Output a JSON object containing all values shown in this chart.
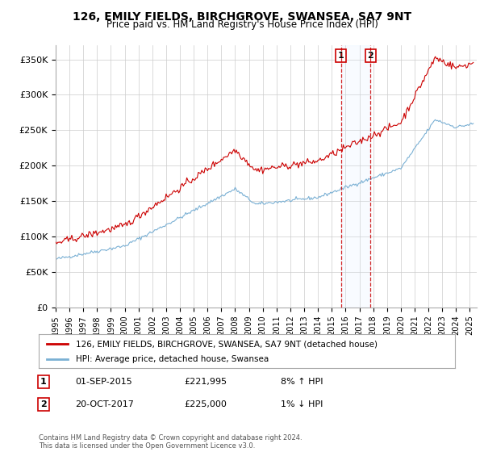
{
  "title": "126, EMILY FIELDS, BIRCHGROVE, SWANSEA, SA7 9NT",
  "subtitle": "Price paid vs. HM Land Registry's House Price Index (HPI)",
  "ylabel_ticks": [
    "£0",
    "£50K",
    "£100K",
    "£150K",
    "£200K",
    "£250K",
    "£300K",
    "£350K"
  ],
  "ytick_values": [
    0,
    50000,
    100000,
    150000,
    200000,
    250000,
    300000,
    350000
  ],
  "ylim": [
    0,
    370000
  ],
  "xlim_start": 1995.0,
  "xlim_end": 2025.5,
  "legend_line1": "126, EMILY FIELDS, BIRCHGROVE, SWANSEA, SA7 9NT (detached house)",
  "legend_line2": "HPI: Average price, detached house, Swansea",
  "line1_color": "#cc0000",
  "line2_color": "#7ab0d4",
  "marker1_date": 2015.67,
  "marker1_price": 221995,
  "marker2_date": 2017.8,
  "marker2_price": 225000,
  "footer": "Contains HM Land Registry data © Crown copyright and database right 2024.\nThis data is licensed under the Open Government Licence v3.0.",
  "background_color": "#ffffff",
  "grid_color": "#cccccc",
  "shade_color": "#ddeeff"
}
